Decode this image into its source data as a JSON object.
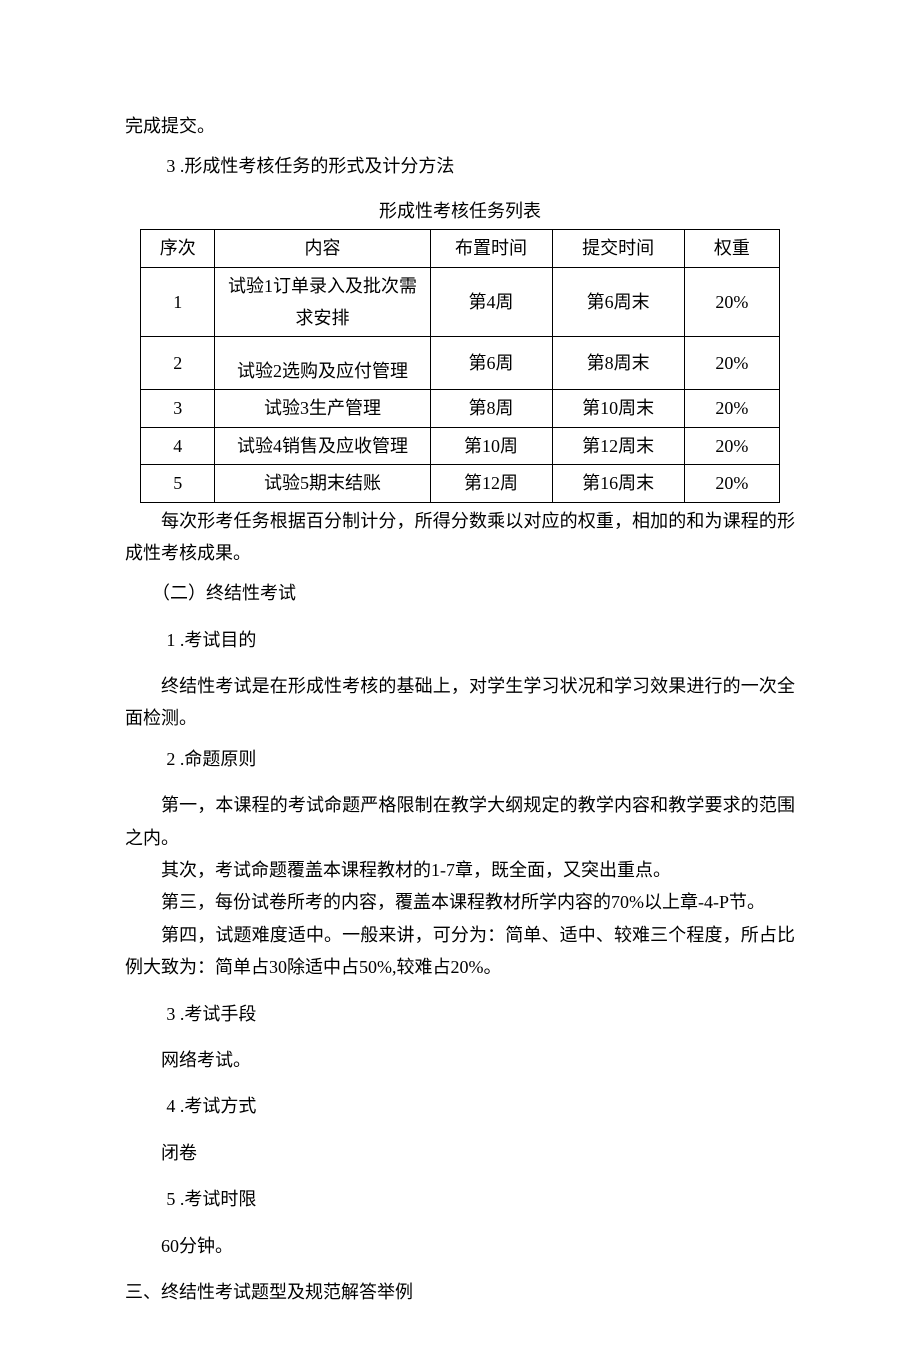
{
  "opening_line": "完成提交。",
  "item3": "3 .形成性考核任务的形式及计分方法",
  "table_caption": "形成性考核任务列表",
  "table": {
    "headers": [
      "序次",
      "内容",
      "布置时间",
      "提交时间",
      "权重"
    ],
    "rows": [
      [
        "1",
        "试验1订单录入及批次需求安排",
        "第4周",
        "第6周末",
        "20%"
      ],
      [
        "2",
        "试验2选购及应付管理",
        "第6周",
        "第8周末",
        "20%"
      ],
      [
        "3",
        "试验3生产管理",
        "第8周",
        "第10周末",
        "20%"
      ],
      [
        "4",
        "试验4销售及应收管理",
        "第10周",
        "第12周末",
        "20%"
      ],
      [
        "5",
        "试验5期末结账",
        "第12周",
        "第16周末",
        "20%"
      ]
    ]
  },
  "para_after_table": "每次形考任务根据百分制计分，所得分数乘以对应的权重，相加的和为课程的形成性考核成果。",
  "sec2_title": "（二）终结性考试",
  "sec2_1_label": "1 .考试目的",
  "sec2_1_text": "终结性考试是在形成性考核的基础上，对学生学习状况和学习效果进行的一次全面检测。",
  "sec2_2_label": "2 .命题原则",
  "sec2_2_p1": "第一，本课程的考试命题严格限制在教学大纲规定的教学内容和教学要求的范围之内。",
  "sec2_2_p2": "其次，考试命题覆盖本课程教材的1-7章，既全面，又突出重点。",
  "sec2_2_p3": "第三，每份试卷所考的内容，覆盖本课程教材所学内容的70%以上章-4-P节。",
  "sec2_2_p4": "第四，试题难度适中。一般来讲，可分为：简单、适中、较难三个程度，所占比例大致为：简单占30除适中占50%,较难占20%。",
  "sec2_3_label": "3 .考试手段",
  "sec2_3_text": "网络考试。",
  "sec2_4_label": "4 .考试方式",
  "sec2_4_text": "闭卷",
  "sec2_5_label": "5 .考试时限",
  "sec2_5_text": " 60分钟。",
  "sec3_title": "三、终结性考试题型及规范解答举例"
}
